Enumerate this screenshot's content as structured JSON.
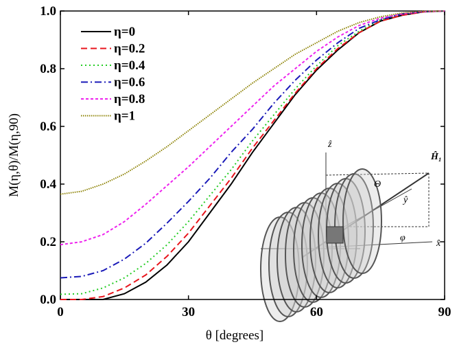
{
  "chart_data": {
    "type": "line",
    "x_label": "θ [degrees]",
    "y_label": "M(η,θ)/M(η,90)",
    "x": [
      0,
      5,
      10,
      15,
      20,
      25,
      30,
      35,
      40,
      45,
      50,
      55,
      60,
      65,
      70,
      75,
      80,
      85,
      90
    ],
    "series": [
      {
        "name": "η=0",
        "color": "#000000",
        "dash": "solid",
        "values": [
          0,
          0,
          0,
          0.02,
          0.06,
          0.12,
          0.2,
          0.3,
          0.4,
          0.51,
          0.61,
          0.71,
          0.795,
          0.865,
          0.925,
          0.965,
          0.985,
          0.997,
          1
        ]
      },
      {
        "name": "η=0.2",
        "color": "#e8141c",
        "dash": "dashed",
        "values": [
          0,
          0,
          0.01,
          0.04,
          0.085,
          0.15,
          0.23,
          0.325,
          0.42,
          0.525,
          0.62,
          0.715,
          0.8,
          0.87,
          0.925,
          0.965,
          0.985,
          0.997,
          1
        ]
      },
      {
        "name": "η=0.4",
        "color": "#22cc22",
        "dash": "dotted",
        "values": [
          0.018,
          0.02,
          0.04,
          0.075,
          0.125,
          0.19,
          0.27,
          0.36,
          0.45,
          0.55,
          0.64,
          0.73,
          0.81,
          0.88,
          0.93,
          0.97,
          0.99,
          0.998,
          1
        ]
      },
      {
        "name": "η=0.6",
        "color": "#1a1ab8",
        "dash": "dashdot",
        "values": [
          0.075,
          0.08,
          0.1,
          0.14,
          0.195,
          0.265,
          0.34,
          0.42,
          0.51,
          0.59,
          0.68,
          0.76,
          0.83,
          0.89,
          0.94,
          0.97,
          0.99,
          0.998,
          1
        ]
      },
      {
        "name": "η=0.8",
        "color": "#ee22ee",
        "dash": "shortdash",
        "values": [
          0.19,
          0.2,
          0.225,
          0.27,
          0.33,
          0.395,
          0.46,
          0.53,
          0.6,
          0.67,
          0.74,
          0.8,
          0.86,
          0.91,
          0.95,
          0.975,
          0.99,
          0.998,
          1
        ]
      },
      {
        "name": "η=1",
        "color": "#8b8000",
        "dash": "fine",
        "values": [
          0.365,
          0.375,
          0.4,
          0.435,
          0.48,
          0.53,
          0.585,
          0.64,
          0.695,
          0.75,
          0.8,
          0.85,
          0.89,
          0.93,
          0.96,
          0.98,
          0.993,
          0.999,
          1
        ]
      }
    ],
    "xlim": [
      0,
      90
    ],
    "xticks": [
      0,
      30,
      60,
      90
    ],
    "ylim": [
      0,
      1
    ],
    "yticks": [
      {
        "value": 0,
        "label": "0.0"
      },
      0.2,
      0.4,
      0.6,
      0.8,
      {
        "value": 1,
        "label": "1.0"
      }
    ],
    "legend": "upper left",
    "annotations": [
      "ẑ",
      "Ĥ₁",
      "Θ",
      "ŷ",
      "x̂",
      "φ"
    ]
  }
}
